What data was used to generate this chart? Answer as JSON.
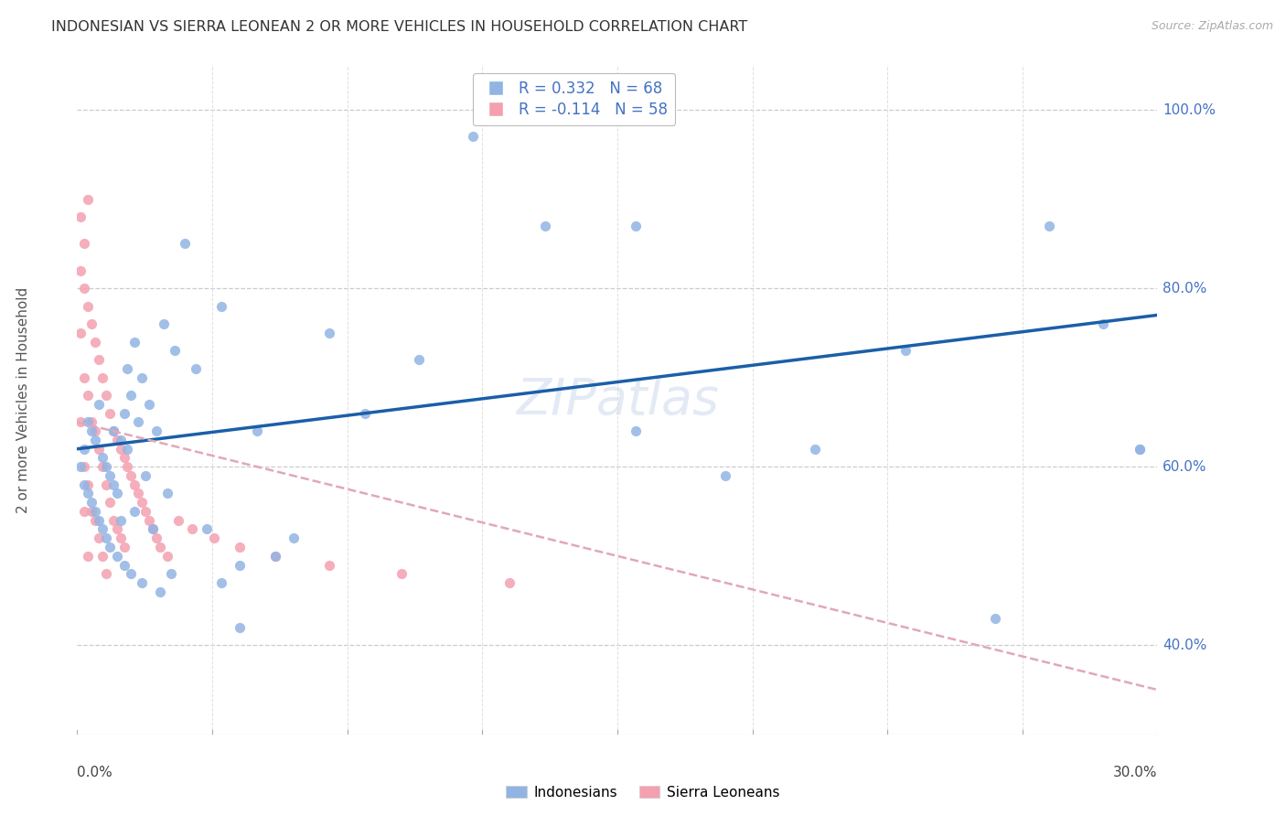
{
  "title": "INDONESIAN VS SIERRA LEONEAN 2 OR MORE VEHICLES IN HOUSEHOLD CORRELATION CHART",
  "source": "Source: ZipAtlas.com",
  "ylabel": "2 or more Vehicles in Household",
  "ytick_labels": [
    "40.0%",
    "60.0%",
    "80.0%",
    "100.0%"
  ],
  "ytick_values": [
    0.4,
    0.6,
    0.8,
    1.0
  ],
  "xmin": 0.0,
  "xmax": 0.3,
  "ymin": 0.3,
  "ymax": 1.05,
  "r_indonesian": 0.332,
  "n_indonesian": 68,
  "r_sierra": -0.114,
  "n_sierra": 58,
  "color_indonesian": "#92b4e3",
  "color_sierra": "#f4a0b0",
  "color_trend_indonesian": "#1a5fa8",
  "color_trend_sierra": "#e0a8b8",
  "legend_label_indonesian": "Indonesians",
  "legend_label_sierra": "Sierra Leoneans",
  "watermark": "ZIPatlas",
  "trend_indo_x0": 0.0,
  "trend_indo_y0": 0.62,
  "trend_indo_x1": 0.3,
  "trend_indo_y1": 0.77,
  "trend_sierra_x0": 0.0,
  "trend_sierra_y0": 0.65,
  "trend_sierra_x1": 0.3,
  "trend_sierra_y1": 0.35,
  "indonesian_x": [
    0.001,
    0.002,
    0.002,
    0.003,
    0.003,
    0.004,
    0.004,
    0.005,
    0.005,
    0.006,
    0.006,
    0.007,
    0.007,
    0.008,
    0.008,
    0.009,
    0.009,
    0.01,
    0.01,
    0.011,
    0.011,
    0.012,
    0.012,
    0.013,
    0.013,
    0.014,
    0.014,
    0.015,
    0.015,
    0.016,
    0.016,
    0.017,
    0.018,
    0.018,
    0.019,
    0.02,
    0.021,
    0.022,
    0.023,
    0.024,
    0.025,
    0.026,
    0.027,
    0.03,
    0.033,
    0.036,
    0.04,
    0.045,
    0.05,
    0.06,
    0.07,
    0.08,
    0.095,
    0.11,
    0.13,
    0.155,
    0.18,
    0.205,
    0.23,
    0.255,
    0.27,
    0.285,
    0.295,
    0.04,
    0.045,
    0.055,
    0.155,
    0.295
  ],
  "indonesian_y": [
    0.6,
    0.62,
    0.58,
    0.65,
    0.57,
    0.64,
    0.56,
    0.63,
    0.55,
    0.67,
    0.54,
    0.61,
    0.53,
    0.6,
    0.52,
    0.59,
    0.51,
    0.58,
    0.64,
    0.57,
    0.5,
    0.63,
    0.54,
    0.66,
    0.49,
    0.62,
    0.71,
    0.48,
    0.68,
    0.74,
    0.55,
    0.65,
    0.47,
    0.7,
    0.59,
    0.67,
    0.53,
    0.64,
    0.46,
    0.76,
    0.57,
    0.48,
    0.73,
    0.85,
    0.71,
    0.53,
    0.78,
    0.49,
    0.64,
    0.52,
    0.75,
    0.66,
    0.72,
    0.97,
    0.87,
    0.64,
    0.59,
    0.62,
    0.73,
    0.43,
    0.87,
    0.76,
    0.62,
    0.47,
    0.42,
    0.5,
    0.87,
    0.62
  ],
  "sierra_x": [
    0.001,
    0.001,
    0.001,
    0.002,
    0.002,
    0.002,
    0.002,
    0.003,
    0.003,
    0.003,
    0.003,
    0.004,
    0.004,
    0.004,
    0.005,
    0.005,
    0.005,
    0.006,
    0.006,
    0.006,
    0.007,
    0.007,
    0.007,
    0.008,
    0.008,
    0.008,
    0.009,
    0.009,
    0.01,
    0.01,
    0.011,
    0.011,
    0.012,
    0.012,
    0.013,
    0.013,
    0.014,
    0.015,
    0.016,
    0.017,
    0.018,
    0.019,
    0.02,
    0.021,
    0.022,
    0.023,
    0.025,
    0.028,
    0.032,
    0.038,
    0.045,
    0.055,
    0.07,
    0.09,
    0.12,
    0.001,
    0.002,
    0.003
  ],
  "sierra_y": [
    0.75,
    0.82,
    0.65,
    0.8,
    0.7,
    0.6,
    0.55,
    0.78,
    0.68,
    0.58,
    0.5,
    0.76,
    0.65,
    0.55,
    0.74,
    0.64,
    0.54,
    0.72,
    0.62,
    0.52,
    0.7,
    0.6,
    0.5,
    0.68,
    0.58,
    0.48,
    0.66,
    0.56,
    0.64,
    0.54,
    0.63,
    0.53,
    0.62,
    0.52,
    0.61,
    0.51,
    0.6,
    0.59,
    0.58,
    0.57,
    0.56,
    0.55,
    0.54,
    0.53,
    0.52,
    0.51,
    0.5,
    0.54,
    0.53,
    0.52,
    0.51,
    0.5,
    0.49,
    0.48,
    0.47,
    0.88,
    0.85,
    0.9
  ]
}
